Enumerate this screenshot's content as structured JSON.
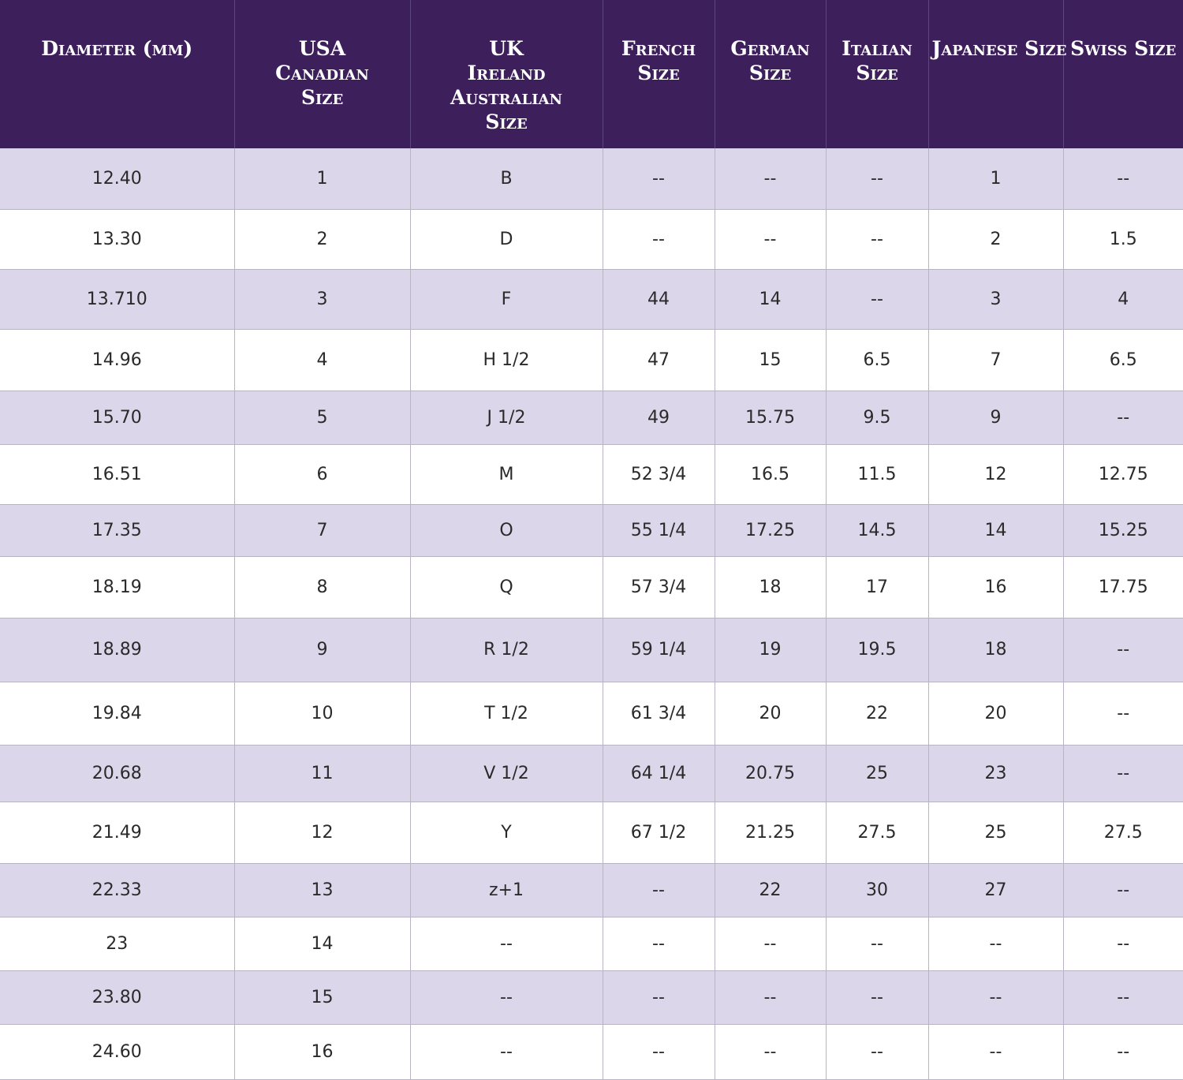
{
  "headers": [
    [
      "Diameter (mm)"
    ],
    [
      "USA",
      "Canadian",
      "Size"
    ],
    [
      "UK",
      "Ireland",
      "Australian",
      "Size"
    ],
    [
      "French",
      "Size"
    ],
    [
      "German",
      "Size"
    ],
    [
      "Italian",
      "Size"
    ],
    [
      "Japanese Size"
    ],
    [
      "Swiss Size"
    ]
  ],
  "rows": [
    [
      "12.40",
      "1",
      "B",
      "--",
      "--",
      "--",
      "1",
      "--"
    ],
    [
      "13.30",
      "2",
      "D",
      "--",
      "--",
      "--",
      "2",
      "1.5"
    ],
    [
      "13.710",
      "3",
      "F",
      "44",
      "14",
      "--",
      "3",
      "4"
    ],
    [
      "14.96",
      "4",
      "H 1/2",
      "47",
      "15",
      "6.5",
      "7",
      "6.5"
    ],
    [
      "15.70",
      "5",
      "J 1/2",
      "49",
      "15.75",
      "9.5",
      "9",
      "--"
    ],
    [
      "16.51",
      "6",
      "M",
      "52 3/4",
      "16.5",
      "11.5",
      "12",
      "12.75"
    ],
    [
      "17.35",
      "7",
      "O",
      "55 1/4",
      "17.25",
      "14.5",
      "14",
      "15.25"
    ],
    [
      "18.19",
      "8",
      "Q",
      "57 3/4",
      "18",
      "17",
      "16",
      "17.75"
    ],
    [
      "18.89",
      "9",
      "R 1/2",
      "59 1/4",
      "19",
      "19.5",
      "18",
      "--"
    ],
    [
      "19.84",
      "10",
      "T 1/2",
      "61 3/4",
      "20",
      "22",
      "20",
      "--"
    ],
    [
      "20.68",
      "11",
      "V 1/2",
      "64 1/4",
      "20.75",
      "25",
      "23",
      "--"
    ],
    [
      "21.49",
      "12",
      "Y",
      "67 1/2",
      "21.25",
      "27.5",
      "25",
      "27.5"
    ],
    [
      "22.33",
      "13",
      "z+1",
      "--",
      "22",
      "30",
      "27",
      "--"
    ],
    [
      "23",
      "14",
      "--",
      "--",
      "--",
      "--",
      "--",
      "--"
    ],
    [
      "23.80",
      "15",
      "--",
      "--",
      "--",
      "--",
      "--",
      "--"
    ],
    [
      "24.60",
      "16",
      "--",
      "--",
      "--",
      "--",
      "--",
      "--"
    ]
  ],
  "colors": {
    "header_bg": "#3d1f5c",
    "header_text": "#ffffff",
    "row_shaded": "#dcd6ea",
    "row_plain": "#ffffff",
    "grid_line": "#b9b3c4"
  }
}
